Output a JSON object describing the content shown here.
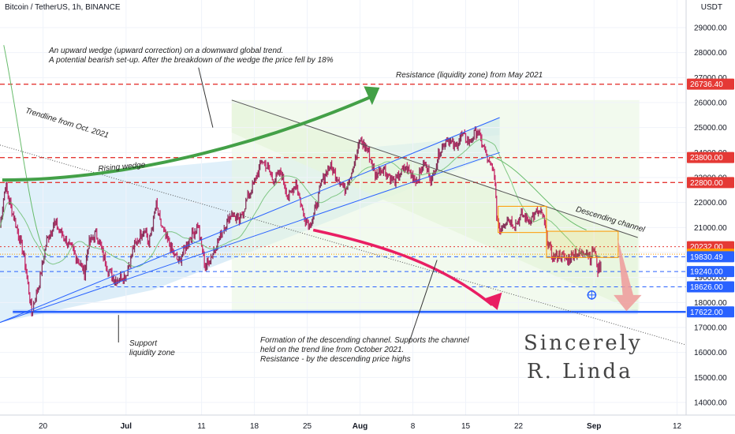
{
  "header": {
    "title": "Bitcoin / TetherUS, 1h, BINANCE",
    "quote_currency": "USDT"
  },
  "chart_data": {
    "type": "candlestick",
    "title": "Bitcoin / TetherUS, 1h, BINANCE",
    "ylim": [
      13500,
      30000
    ],
    "x_ticks": [
      {
        "label": "20",
        "day": 20
      },
      {
        "label": "Jul",
        "day": 31
      },
      {
        "label": "11",
        "day": 41
      },
      {
        "label": "18",
        "day": 48
      },
      {
        "label": "25",
        "day": 55
      },
      {
        "label": "Aug",
        "day": 62
      },
      {
        "label": "8",
        "day": 69
      },
      {
        "label": "15",
        "day": 76
      },
      {
        "label": "22",
        "day": 83
      },
      {
        "label": "Sep",
        "day": 93
      },
      {
        "label": "12",
        "day": 104
      }
    ],
    "y_ticks": [
      14000,
      15000,
      16000,
      17000,
      18000,
      19000,
      20000,
      21000,
      22000,
      23000,
      24000,
      25000,
      26000,
      27000,
      28000,
      29000
    ],
    "price_path": [
      [
        14.3,
        21000
      ],
      [
        15,
        22700
      ],
      [
        16.5,
        21000
      ],
      [
        17.5,
        19800
      ],
      [
        18.5,
        17600
      ],
      [
        19.5,
        18800
      ],
      [
        20.5,
        20500
      ],
      [
        21.5,
        21200
      ],
      [
        23,
        20500
      ],
      [
        24.5,
        19800
      ],
      [
        25.5,
        19200
      ],
      [
        26,
        20300
      ],
      [
        27,
        20800
      ],
      [
        28.5,
        19400
      ],
      [
        29.5,
        18900
      ],
      [
        31,
        19100
      ],
      [
        32,
        20200
      ],
      [
        33.5,
        21000
      ],
      [
        34,
        20300
      ],
      [
        35,
        21900
      ],
      [
        35.5,
        21200
      ],
      [
        37,
        20100
      ],
      [
        38,
        19600
      ],
      [
        39,
        20300
      ],
      [
        40.5,
        21100
      ],
      [
        41.5,
        19400
      ],
      [
        42.5,
        20000
      ],
      [
        43.5,
        20700
      ],
      [
        45,
        21600
      ],
      [
        46,
        21200
      ],
      [
        47,
        22100
      ],
      [
        48,
        22800
      ],
      [
        49,
        23700
      ],
      [
        49.5,
        23500
      ],
      [
        50.5,
        22900
      ],
      [
        51.5,
        23200
      ],
      [
        52.5,
        22200
      ],
      [
        53.5,
        22800
      ],
      [
        54.5,
        21500
      ],
      [
        55.3,
        21100
      ],
      [
        56,
        21600
      ],
      [
        57,
        22900
      ],
      [
        58,
        23500
      ],
      [
        59,
        23000
      ],
      [
        60,
        22500
      ],
      [
        61.5,
        23800
      ],
      [
        62,
        24500
      ],
      [
        63,
        24100
      ],
      [
        64,
        23100
      ],
      [
        65,
        23400
      ],
      [
        66.5,
        22800
      ],
      [
        68,
        23400
      ],
      [
        69.5,
        22900
      ],
      [
        70.5,
        23600
      ],
      [
        71.5,
        22900
      ],
      [
        72.5,
        24000
      ],
      [
        73.5,
        24600
      ],
      [
        74.5,
        24200
      ],
      [
        75.5,
        24700
      ],
      [
        76.5,
        24400
      ],
      [
        77.5,
        24900
      ],
      [
        78.5,
        24100
      ],
      [
        79,
        23600
      ],
      [
        79.8,
        23200
      ],
      [
        80.1,
        21500
      ],
      [
        80.5,
        20900
      ],
      [
        81.5,
        21400
      ],
      [
        82.5,
        21100
      ],
      [
        83.5,
        21500
      ],
      [
        84.5,
        21300
      ],
      [
        85.5,
        21600
      ],
      [
        86.2,
        21500
      ],
      [
        86.8,
        20500
      ],
      [
        87.5,
        19800
      ],
      [
        88.5,
        19900
      ],
      [
        89.5,
        19700
      ],
      [
        90.5,
        20000
      ],
      [
        91,
        19900
      ],
      [
        92,
        20100
      ],
      [
        92.5,
        19800
      ],
      [
        93,
        20200
      ],
      [
        93.5,
        19300
      ],
      [
        93.9,
        19600
      ]
    ],
    "horizontal_levels": [
      {
        "price": 26736.4,
        "label": "26736.40",
        "style": "red-dashed"
      },
      {
        "price": 23800.0,
        "label": "23800.00",
        "style": "red-dashed"
      },
      {
        "price": 22800.0,
        "label": "22800.00",
        "style": "red-dashed"
      },
      {
        "price": 20232.0,
        "label": "20232.00",
        "style": "red-dotted"
      },
      {
        "price": 19934.63,
        "label": "19934.63",
        "style": "orange"
      },
      {
        "price": 19830.49,
        "label": "19830.49",
        "style": "blue-dashed"
      },
      {
        "price": 19240.0,
        "label": "19240.00",
        "style": "blue-dashed"
      },
      {
        "price": 18626.0,
        "label": "18626.00",
        "style": "blue-dashed"
      },
      {
        "price": 17622.0,
        "label": "17622.00",
        "style": "blue-solid"
      }
    ],
    "colors": {
      "up": "#26a69a",
      "down": "#c2185b",
      "candles": "#7b1f4a",
      "red_level": "#e53935",
      "blue_level": "#2962ff",
      "orange": "#ff9800",
      "green_arrow": "#43a047",
      "magenta_arrow": "#e91e63",
      "wedge_fill": "#cfe8f7",
      "channel_fill": "#e6f4d6"
    }
  },
  "annotations": {
    "wedge_note": [
      "An upward wedge (upward correction) on a downward global trend.",
      "A potential bearish set-up. After the breakdown of the wedge the price fell by 18%"
    ],
    "resistance_note": "Resistance (liquidity zone) from May 2021",
    "trendline_label": "Trendline from Oct. 2021",
    "rising_wedge_label": "Rising wedge",
    "descending_channel_label": "Descending channel",
    "support_note": [
      "Support",
      "liquidity zone"
    ],
    "channel_note": [
      "Formation of the descending channel. Supports the channel",
      "held on the trend line from October 2021.",
      "Resistance - by the descending price highs"
    ],
    "signature": [
      "Sincerely",
      "R. Linda"
    ]
  }
}
